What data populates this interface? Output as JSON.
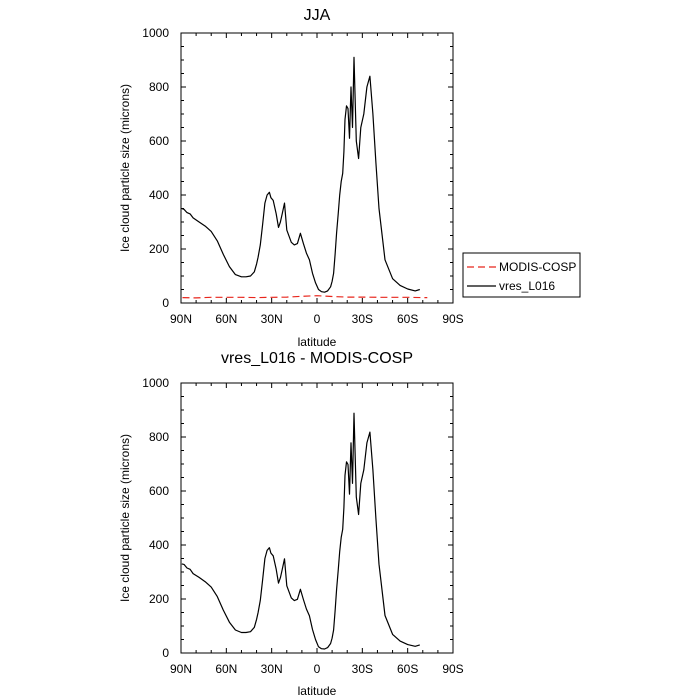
{
  "chart_data": [
    {
      "type": "line",
      "title": "JJA",
      "xlabel": "latitude",
      "ylabel": "Ice cloud particle size (microns)",
      "xlim": [
        90,
        -90
      ],
      "ylim": [
        0,
        1000
      ],
      "x_tick_labels": [
        "90N",
        "60N",
        "30N",
        "0",
        "30S",
        "60S",
        "90S"
      ],
      "y_tick_labels": [
        "0",
        "200",
        "400",
        "600",
        "800",
        "1000"
      ],
      "grid": false,
      "legend": {
        "position": "right",
        "entries": [
          "MODIS-COSP",
          "vres_L016"
        ]
      },
      "series": [
        {
          "name": "MODIS-COSP",
          "color": "#e8261c",
          "style": "dashed",
          "x": [
            89,
            80,
            70,
            60,
            50,
            40,
            30,
            20,
            10,
            0,
            -10,
            -20,
            -30,
            -40,
            -50,
            -60,
            -70,
            -73
          ],
          "y": [
            20,
            19,
            21,
            21,
            21,
            20,
            21,
            22,
            25,
            27,
            24,
            22,
            22,
            21,
            21,
            21,
            20,
            20
          ]
        },
        {
          "name": "vres_L016",
          "color": "#000000",
          "style": "solid",
          "x": [
            89.5,
            88,
            86,
            84,
            82,
            78,
            74,
            70,
            66,
            62,
            58,
            54,
            50,
            47,
            44,
            41.5,
            40,
            39,
            37.5,
            36,
            34.5,
            33,
            31.5,
            30.5,
            29,
            27,
            25.5,
            24.2,
            23,
            21.5,
            20,
            17,
            15,
            13,
            11,
            9,
            7,
            5,
            3,
            1,
            -1,
            -3,
            -5,
            -7,
            -9,
            -10,
            -11,
            -12,
            -13,
            -14,
            -15,
            -16,
            -17,
            -17.8,
            -18.5,
            -19.5,
            -20.5,
            -21.5,
            -22.5,
            -23.5,
            -24.5,
            -26,
            -27.5,
            -29,
            -31,
            -33,
            -35,
            -37,
            -39,
            -41,
            -45,
            -50,
            -55,
            -60,
            -65,
            -68
          ],
          "y": [
            350,
            347,
            335,
            330,
            315,
            300,
            285,
            265,
            230,
            180,
            135,
            105,
            97,
            97,
            100,
            115,
            145,
            170,
            215,
            290,
            370,
            400,
            410,
            390,
            380,
            330,
            280,
            300,
            330,
            370,
            270,
            225,
            215,
            220,
            258,
            220,
            185,
            160,
            110,
            75,
            50,
            42,
            40,
            45,
            60,
            80,
            110,
            180,
            260,
            330,
            400,
            450,
            480,
            560,
            680,
            730,
            720,
            610,
            800,
            650,
            910,
            600,
            535,
            650,
            700,
            800,
            840,
            700,
            520,
            350,
            160,
            90,
            65,
            52,
            45,
            50
          ]
        }
      ]
    },
    {
      "type": "line",
      "title": "vres_L016 - MODIS-COSP",
      "xlabel": "latitude",
      "ylabel": "Ice cloud particle size (microns)",
      "xlim": [
        90,
        -90
      ],
      "ylim": [
        0,
        1000
      ],
      "x_tick_labels": [
        "90N",
        "60N",
        "30N",
        "0",
        "30S",
        "60S",
        "90S"
      ],
      "y_tick_labels": [
        "0",
        "200",
        "400",
        "600",
        "800",
        "1000"
      ],
      "grid": false,
      "series": [
        {
          "color": "#000000",
          "style": "solid",
          "x": [
            89.5,
            88,
            86,
            84,
            82,
            78,
            74,
            70,
            66,
            62,
            58,
            54,
            50,
            47,
            44,
            41.5,
            40,
            39,
            37.5,
            36,
            34.5,
            33,
            31.5,
            30.5,
            29,
            27,
            25.5,
            24.2,
            23,
            21.5,
            20,
            17,
            15,
            13,
            11,
            9,
            7,
            5,
            3,
            1,
            -1,
            -3,
            -5,
            -7,
            -9,
            -10,
            -11,
            -12,
            -13,
            -14,
            -15,
            -16,
            -17,
            -17.8,
            -18.5,
            -19.5,
            -20.5,
            -21.5,
            -22.5,
            -23.5,
            -24.5,
            -26,
            -27.5,
            -29,
            -31,
            -33,
            -35,
            -37,
            -39,
            -41,
            -45,
            -50,
            -55,
            -60,
            -65,
            -68
          ],
          "y": [
            330,
            328,
            315,
            310,
            294,
            280,
            264,
            244,
            209,
            159,
            114,
            85,
            76,
            76,
            79,
            95,
            125,
            150,
            195,
            270,
            350,
            380,
            390,
            370,
            360,
            310,
            259,
            279,
            309,
            349,
            249,
            204,
            194,
            199,
            236,
            198,
            163,
            138,
            87,
            50,
            23,
            16,
            15,
            20,
            35,
            55,
            85,
            156,
            236,
            306,
            376,
            428,
            458,
            538,
            658,
            708,
            698,
            588,
            778,
            628,
            888,
            578,
            513,
            628,
            678,
            778,
            818,
            678,
            498,
            329,
            139,
            69,
            44,
            31,
            25,
            30
          ]
        }
      ]
    }
  ]
}
